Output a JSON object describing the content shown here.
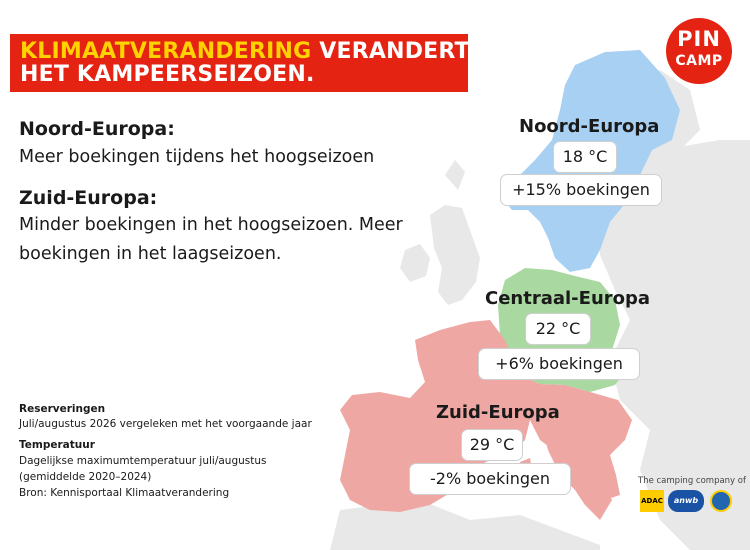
{
  "title": {
    "highlight": "KLIMAATVERANDERING",
    "rest_line1": "VERANDERT",
    "line2": "HET KAMPEERSEIZOEN."
  },
  "logo": {
    "line1": "PIN",
    "line2": "CAMP"
  },
  "regions_text": [
    {
      "heading": "Noord-Europa:",
      "body": "Meer boekingen tijdens het hoogseizoen"
    },
    {
      "heading": "Zuid-Europa:",
      "body": "Minder boekingen in het hoogseizoen. Meer boekingen in het laagseizoen."
    }
  ],
  "map_regions": [
    {
      "name": "Noord-Europa",
      "temperature": "18 °C",
      "bookings": "+15% boekingen",
      "color": "#a8d0f2"
    },
    {
      "name": "Centraal-Europa",
      "temperature": "22 °C",
      "bookings": "+6% boekingen",
      "color": "#a9d8a0"
    },
    {
      "name": "Zuid-Europa",
      "temperature": "29 °C",
      "bookings": "-2% boekingen",
      "color": "#efa7a3"
    }
  ],
  "footnotes": {
    "reservations_heading": "Reserveringen",
    "reservations_text": "Juli/augustus 2026 vergeleken met het voorgaande jaar",
    "temperature_heading": "Temperatuur",
    "temperature_line1": "Dagelijkse maximumtemperatuur juli/augustus",
    "temperature_line2": "(gemiddelde 2020–2024)",
    "source": "Bron: Kennisportaal Klimaatverandering"
  },
  "partners": {
    "caption": "The camping company of",
    "adac": "ADAC",
    "anwb": "anwb"
  },
  "colors": {
    "brand_red": "#e42313",
    "brand_yellow": "#ffd200",
    "land_grey": "#e9e9e9"
  }
}
